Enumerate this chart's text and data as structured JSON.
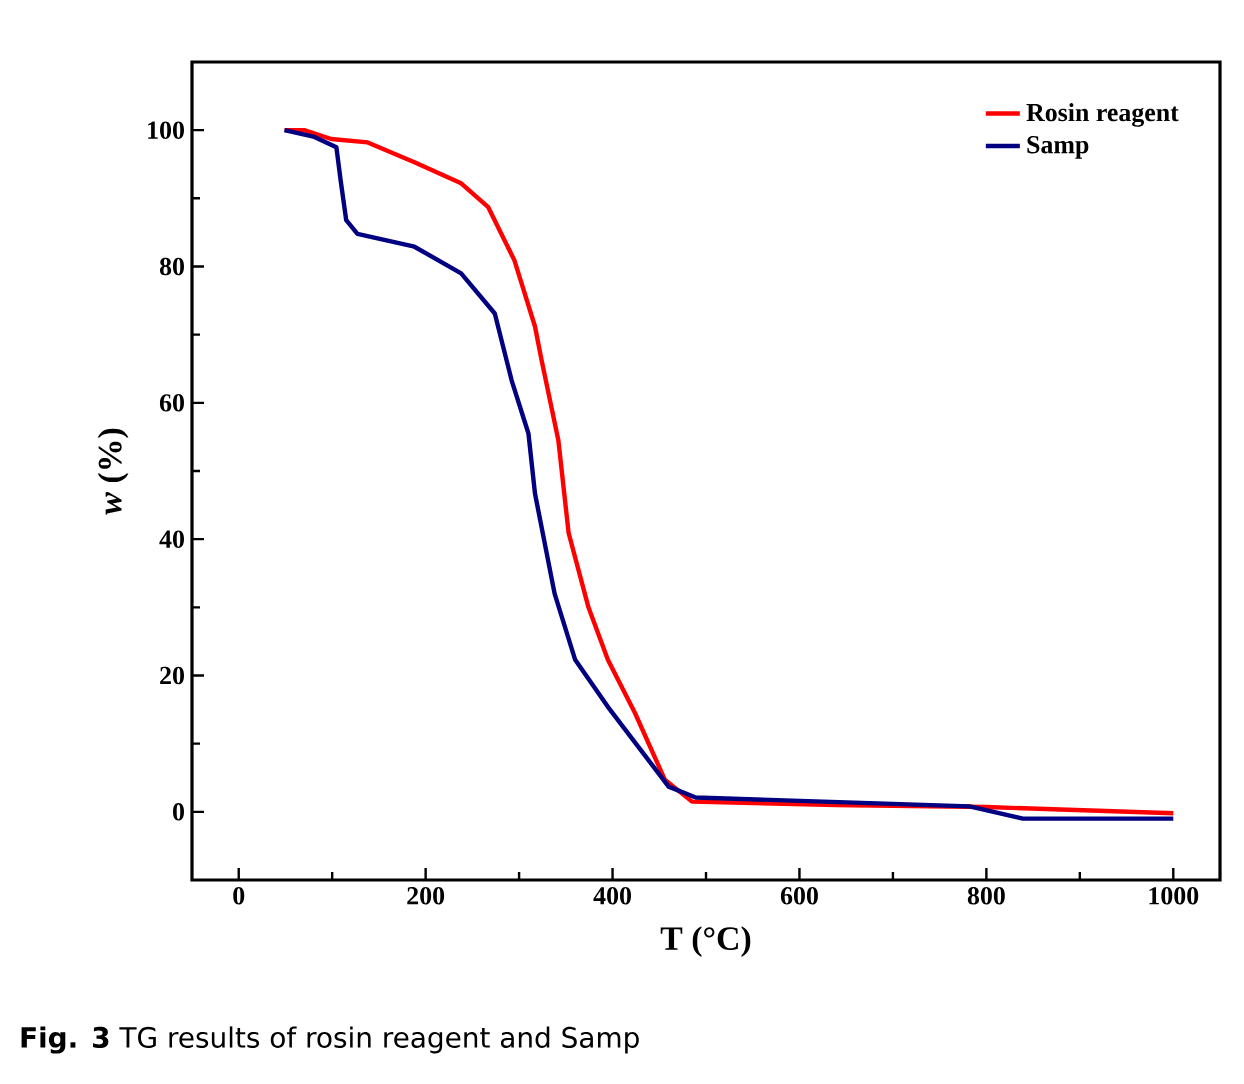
{
  "chart_data": {
    "type": "line",
    "xlabel": "T (°C)",
    "ylabel": "*w* (%)",
    "x": [
      49,
      70,
      99,
      138,
      188,
      238,
      267,
      295,
      317,
      324,
      342,
      353,
      374,
      395,
      424,
      456,
      485,
      639,
      800,
      1000
    ],
    "series": [
      {
        "name": "Rosin reagent",
        "color": "#ff0000",
        "values": [
          100,
          100,
          98.7,
          98.2,
          95.3,
          92.2,
          88.7,
          80.9,
          71.2,
          66.3,
          54.5,
          40.9,
          30.1,
          22.3,
          14.5,
          4.7,
          1.5,
          1.0,
          0.7,
          -0.2
        ]
      },
      {
        "name": "Samp",
        "color": "#000080",
        "x": [
          49,
          81,
          104.5,
          109,
          115,
          127,
          188,
          238,
          274,
          292,
          310,
          317,
          338,
          360,
          395,
          460,
          489,
          782,
          839,
          1000
        ],
        "values": [
          100,
          99,
          97.5,
          92.7,
          86.8,
          84.8,
          82.9,
          79,
          73.1,
          63.3,
          55.5,
          46.7,
          32,
          22.3,
          15.4,
          3.7,
          2.1,
          0.8,
          -1,
          -1
        ]
      }
    ],
    "xlim": [
      -50,
      1050
    ],
    "ylim": [
      -10,
      110
    ],
    "xticks": [
      0,
      200,
      400,
      600,
      800,
      1000
    ],
    "yticks": [
      0,
      20,
      40,
      60,
      80,
      100
    ],
    "legend": "top right",
    "grid": false,
    "marker": "none",
    "line_style": "solid",
    "annotations": [
      "**Fig. 3** TG results of rosin reagent and Samp"
    ]
  }
}
